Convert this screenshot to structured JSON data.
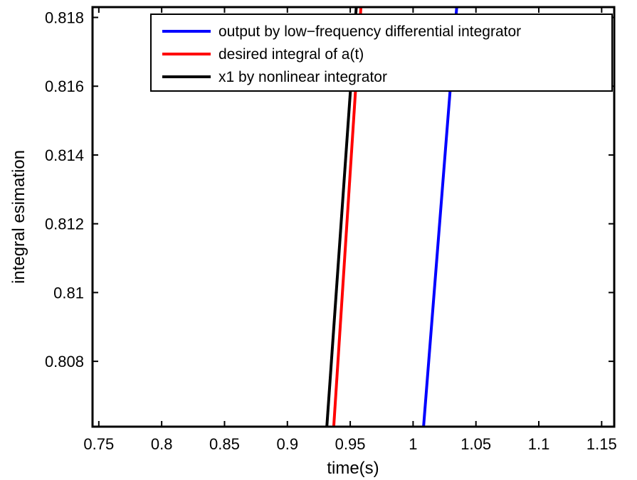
{
  "chart_data": {
    "type": "line",
    "title": "",
    "xlabel": "time(s)",
    "ylabel": "integral esimation",
    "xlim": [
      0.745,
      1.16
    ],
    "ylim": [
      0.8061,
      0.8183
    ],
    "x_ticks": [
      0.75,
      0.8,
      0.85,
      0.9,
      0.95,
      1,
      1.05,
      1.1,
      1.15
    ],
    "x_tick_labels": [
      "0.75",
      "0.8",
      "0.85",
      "0.9",
      "0.95",
      "1",
      "1.05",
      "1.1",
      "1.15"
    ],
    "y_ticks": [
      0.808,
      0.81,
      0.812,
      0.814,
      0.816,
      0.818
    ],
    "y_tick_labels": [
      "0.808",
      "0.81",
      "0.812",
      "0.814",
      "0.816",
      "0.818"
    ],
    "grid": false,
    "legend_position": "top-right",
    "series": [
      {
        "name": "output by low−frequency differential integrator",
        "color": "#0000ff",
        "x": [
          1.0083,
          1.0347
        ],
        "y": [
          0.8061,
          0.8183
        ]
      },
      {
        "name": "desired integral of a(t)",
        "color": "#ff0000",
        "x": [
          0.9369,
          0.9585
        ],
        "y": [
          0.8061,
          0.8183
        ]
      },
      {
        "name": "x1 by nonlinear integrator",
        "color": "#000000",
        "x": [
          0.9314,
          0.9548
        ],
        "y": [
          0.8061,
          0.8183
        ]
      }
    ]
  }
}
